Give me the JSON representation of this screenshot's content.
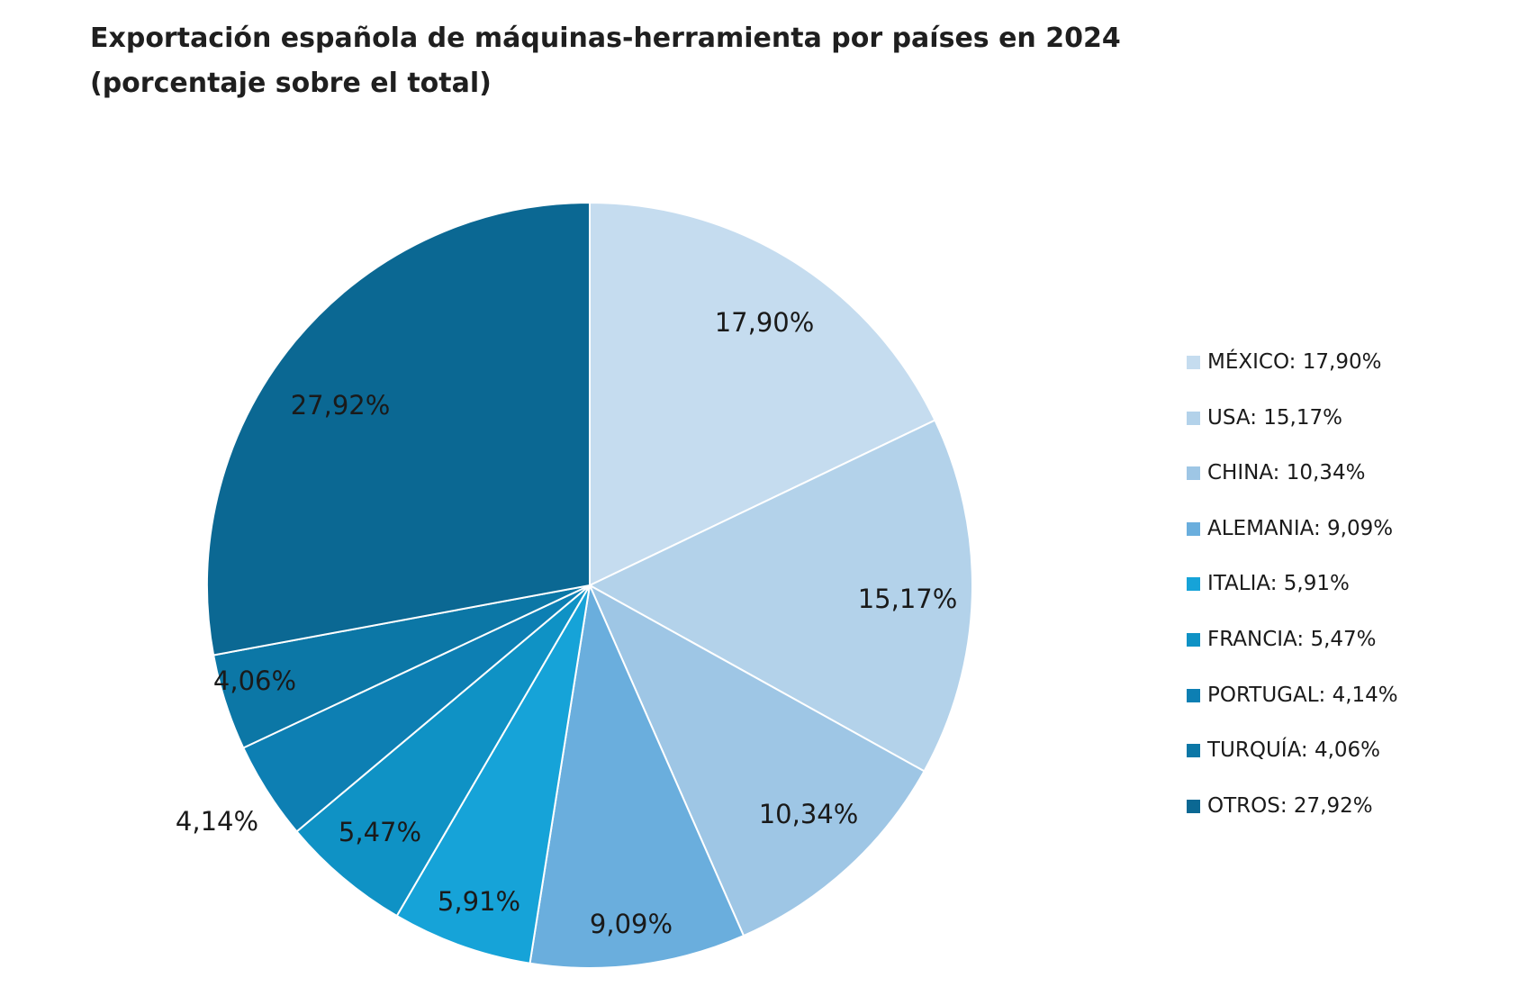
{
  "chart_data": {
    "type": "pie",
    "title": "Exportación española de máquinas-herramienta por países en 2024",
    "subtitle": "(porcentaje sobre el total)",
    "legend_position": "right",
    "slices": [
      {
        "name": "MÉXICO",
        "value": 17.9,
        "label": "17,90%",
        "legend": "MÉXICO: 17,90%",
        "color": "#c5dcef"
      },
      {
        "name": "USA",
        "value": 15.17,
        "label": "15,17%",
        "legend": "USA: 15,17%",
        "color": "#b3d2ea"
      },
      {
        "name": "CHINA",
        "value": 10.34,
        "label": "10,34%",
        "legend": "CHINA: 10,34%",
        "color": "#9ec6e5"
      },
      {
        "name": "ALEMANIA",
        "value": 9.09,
        "label": "9,09%",
        "legend": "ALEMANIA: 9,09%",
        "color": "#6aaedd"
      },
      {
        "name": "ITALIA",
        "value": 5.91,
        "label": "5,91%",
        "legend": "ITALIA: 5,91%",
        "color": "#16a3d8"
      },
      {
        "name": "FRANCIA",
        "value": 5.47,
        "label": "5,47%",
        "legend": "FRANCIA: 5,47%",
        "color": "#0f92c5"
      },
      {
        "name": "PORTUGAL",
        "value": 4.14,
        "label": "4,14%",
        "legend": "PORTUGAL: 4,14%",
        "color": "#0d7fb3"
      },
      {
        "name": "TURQUÍA",
        "value": 4.06,
        "label": "4,06%",
        "legend": "TURQUÍA: 4,06%",
        "color": "#0c77a6"
      },
      {
        "name": "OTROS",
        "value": 27.92,
        "label": "27,92%",
        "legend": "OTROS: 27,92%",
        "color": "#0b6893"
      }
    ]
  }
}
